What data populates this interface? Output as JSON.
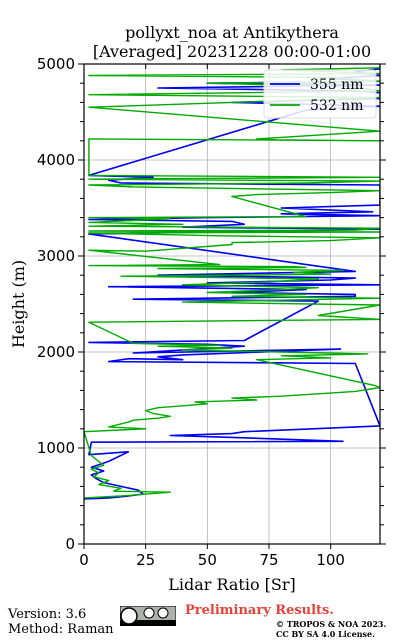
{
  "chart_data": {
    "type": "line",
    "title_line1": "pollyxt_noa at Antikythera",
    "title_line2": "[Averaged] 20231228 00:00-01:00",
    "xlabel": "Lidar Ratio [$Sr$]",
    "ylabel": "Height (m)",
    "xlim": [
      0,
      120
    ],
    "ylim": [
      0,
      5000
    ],
    "x_ticks": [
      0,
      25,
      50,
      75,
      100
    ],
    "y_ticks": [
      0,
      1000,
      2000,
      3000,
      4000,
      5000
    ],
    "grid": true,
    "legend_position": "top-right",
    "series": [
      {
        "name": "355 nm",
        "color": "#0000ee",
        "points": [
          [
            0,
            470
          ],
          [
            10,
            480
          ],
          [
            18,
            500
          ],
          [
            24,
            520
          ],
          [
            22,
            560
          ],
          [
            15,
            600
          ],
          [
            8,
            640
          ],
          [
            5,
            680
          ],
          [
            3,
            720
          ],
          [
            8,
            760
          ],
          [
            3,
            800
          ],
          [
            10,
            860
          ],
          [
            18,
            960
          ],
          [
            2,
            930
          ],
          [
            3,
            1060
          ],
          [
            105,
            1070
          ],
          [
            60,
            1110
          ],
          [
            35,
            1130
          ],
          [
            60,
            1150
          ],
          [
            65,
            1170
          ],
          [
            122,
            1230
          ],
          [
            110,
            1880
          ],
          [
            10,
            1900
          ],
          [
            18,
            1930
          ],
          [
            40,
            1920
          ],
          [
            30,
            1950
          ],
          [
            40,
            1970
          ],
          [
            104,
            2030
          ],
          [
            20,
            1990
          ],
          [
            65,
            2060
          ],
          [
            50,
            2080
          ],
          [
            2,
            2100
          ],
          [
            65,
            2120
          ],
          [
            95,
            2530
          ],
          [
            20,
            2550
          ],
          [
            110,
            2580
          ],
          [
            110,
            2600
          ],
          [
            60,
            2620
          ],
          [
            90,
            2650
          ],
          [
            10,
            2680
          ],
          [
            120,
            2700
          ],
          [
            50,
            2720
          ],
          [
            100,
            2750
          ],
          [
            110,
            2770
          ],
          [
            30,
            2800
          ],
          [
            110,
            2840
          ],
          [
            2,
            3230
          ],
          [
            80,
            3260
          ],
          [
            120,
            3280
          ],
          [
            40,
            3300
          ],
          [
            65,
            3330
          ],
          [
            60,
            3360
          ],
          [
            2,
            3380
          ],
          [
            50,
            3400
          ],
          [
            120,
            3420
          ],
          [
            80,
            3440
          ],
          [
            117,
            3460
          ],
          [
            80,
            3500
          ],
          [
            120,
            3530
          ],
          [
            120,
            3740
          ],
          [
            15,
            3760
          ],
          [
            10,
            3790
          ],
          [
            28,
            3820
          ],
          [
            2,
            3840
          ],
          [
            90,
            4520
          ],
          [
            120,
            4560
          ],
          [
            60,
            4600
          ],
          [
            120,
            4640
          ],
          [
            120,
            4700
          ],
          [
            110,
            4720
          ],
          [
            30,
            4750
          ],
          [
            120,
            4780
          ],
          [
            50,
            4800
          ],
          [
            120,
            4820
          ],
          [
            100,
            4850
          ],
          [
            120,
            4880
          ],
          [
            110,
            4920
          ],
          [
            120,
            4950
          ],
          [
            120,
            4980
          ]
        ]
      },
      {
        "name": "532 nm",
        "color": "#00aa00",
        "points": [
          [
            0,
            480
          ],
          [
            15,
            500
          ],
          [
            25,
            520
          ],
          [
            35,
            540
          ],
          [
            12,
            550
          ],
          [
            15,
            580
          ],
          [
            6,
            620
          ],
          [
            10,
            660
          ],
          [
            4,
            700
          ],
          [
            6,
            740
          ],
          [
            3,
            780
          ],
          [
            8,
            820
          ],
          [
            5,
            880
          ],
          [
            3,
            920
          ],
          [
            0,
            1170
          ],
          [
            25,
            1200
          ],
          [
            10,
            1220
          ],
          [
            18,
            1270
          ],
          [
            20,
            1290
          ],
          [
            30,
            1310
          ],
          [
            35,
            1330
          ],
          [
            28,
            1360
          ],
          [
            25,
            1390
          ],
          [
            30,
            1420
          ],
          [
            40,
            1440
          ],
          [
            50,
            1460
          ],
          [
            45,
            1480
          ],
          [
            70,
            1500
          ],
          [
            60,
            1520
          ],
          [
            80,
            1540
          ],
          [
            110,
            1590
          ],
          [
            120,
            1630
          ],
          [
            118,
            1650
          ],
          [
            70,
            1920
          ],
          [
            100,
            1940
          ],
          [
            80,
            1960
          ],
          [
            115,
            1980
          ],
          [
            80,
            2000
          ],
          [
            40,
            2020
          ],
          [
            60,
            2040
          ],
          [
            30,
            2060
          ],
          [
            55,
            2070
          ],
          [
            20,
            2090
          ],
          [
            2,
            2310
          ],
          [
            120,
            2340
          ],
          [
            95,
            2380
          ],
          [
            120,
            2490
          ],
          [
            40,
            2520
          ],
          [
            120,
            2560
          ],
          [
            60,
            2580
          ],
          [
            90,
            2600
          ],
          [
            50,
            2620
          ],
          [
            80,
            2650
          ],
          [
            95,
            2670
          ],
          [
            40,
            2700
          ],
          [
            75,
            2730
          ],
          [
            95,
            2760
          ],
          [
            15,
            2790
          ],
          [
            100,
            2810
          ],
          [
            85,
            2830
          ],
          [
            105,
            2850
          ],
          [
            30,
            2870
          ],
          [
            90,
            2880
          ],
          [
            85,
            2890
          ],
          [
            2,
            2900
          ],
          [
            55,
            2910
          ],
          [
            2,
            3060
          ],
          [
            25,
            3050
          ],
          [
            60,
            3120
          ],
          [
            60,
            3140
          ],
          [
            100,
            3160
          ],
          [
            120,
            3190
          ],
          [
            55,
            3210
          ],
          [
            2,
            3240
          ],
          [
            120,
            3250
          ],
          [
            2,
            3260
          ],
          [
            110,
            3270
          ],
          [
            120,
            3290
          ],
          [
            2,
            3310
          ],
          [
            40,
            3330
          ],
          [
            2,
            3350
          ],
          [
            20,
            3370
          ],
          [
            35,
            3390
          ],
          [
            2,
            3400
          ],
          [
            90,
            3410
          ],
          [
            60,
            3620
          ],
          [
            70,
            3640
          ],
          [
            100,
            3660
          ],
          [
            120,
            3680
          ],
          [
            70,
            3700
          ],
          [
            20,
            3720
          ],
          [
            2,
            3740
          ],
          [
            90,
            3760
          ],
          [
            120,
            3780
          ],
          [
            2,
            3800
          ],
          [
            120,
            3820
          ],
          [
            2,
            3840
          ],
          [
            2,
            4220
          ],
          [
            120,
            4200
          ],
          [
            78,
            4210
          ],
          [
            70,
            4220
          ],
          [
            120,
            4300
          ],
          [
            2,
            4550
          ],
          [
            60,
            4600
          ],
          [
            120,
            4650
          ],
          [
            2,
            4680
          ],
          [
            120,
            4720
          ],
          [
            110,
            4760
          ],
          [
            50,
            4800
          ],
          [
            120,
            4820
          ],
          [
            100,
            4860
          ],
          [
            2,
            4880
          ],
          [
            120,
            4900
          ],
          [
            80,
            4940
          ],
          [
            120,
            4960
          ]
        ]
      }
    ]
  },
  "footer": {
    "version": "Version: 3.6",
    "method": "Method: Raman",
    "preliminary": "Preliminary Results.",
    "license_line1": "© TROPOS & NOA 2023.",
    "license_line2": "CC BY SA 4.0 License."
  }
}
